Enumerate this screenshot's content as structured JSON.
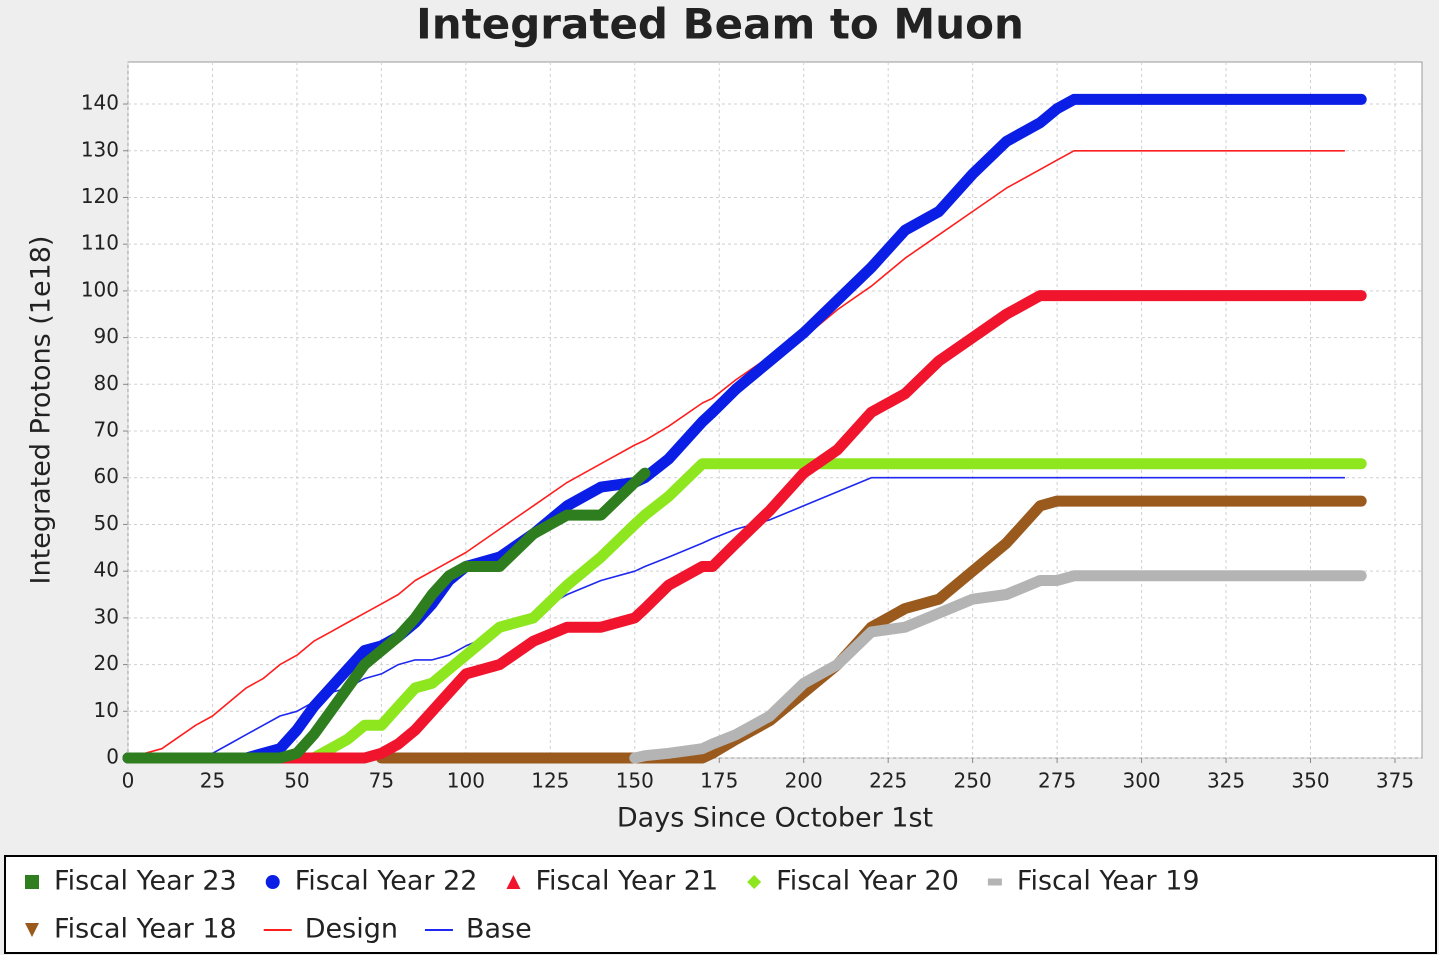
{
  "chart_data": {
    "type": "line",
    "title": "Integrated Beam to Muon",
    "x_label": "Days Since October 1st",
    "y_label": "Integrated Protons (1e18)",
    "x": [
      0,
      10,
      20,
      25,
      30,
      35,
      40,
      45,
      50,
      55,
      60,
      65,
      70,
      75,
      80,
      85,
      90,
      95,
      100,
      110,
      120,
      130,
      140,
      150,
      153,
      160,
      170,
      173,
      180,
      190,
      200,
      210,
      220,
      230,
      240,
      250,
      260,
      270,
      275,
      280,
      290,
      300,
      320,
      340,
      360,
      365
    ],
    "series": [
      {
        "name": "Fiscal Year 23",
        "color": "#2e7d1e",
        "marker": "square",
        "values": [
          0,
          0,
          0,
          0,
          0,
          0,
          0,
          0,
          1,
          5,
          10,
          15,
          20,
          23,
          26,
          30,
          35,
          39,
          41,
          41,
          48,
          52,
          52,
          59,
          61,
          null,
          null,
          null,
          null,
          null,
          null,
          null,
          null,
          null,
          null,
          null,
          null,
          null,
          null,
          null,
          null,
          null,
          null,
          null,
          null,
          null
        ]
      },
      {
        "name": "Fiscal Year 22",
        "color": "#0a1ee6",
        "marker": "circle",
        "values": [
          0,
          0,
          0,
          0,
          0,
          0,
          1,
          2,
          6,
          11,
          15,
          19,
          23,
          24,
          26,
          29,
          33,
          38,
          41,
          43,
          48,
          54,
          58,
          59,
          60,
          64,
          72,
          74,
          79,
          85,
          91,
          98,
          105,
          113,
          117,
          125,
          132,
          136,
          139,
          141,
          141,
          141,
          141,
          141,
          141,
          141
        ]
      },
      {
        "name": "Fiscal Year 21",
        "color": "#f0142d",
        "marker": "triangle",
        "values": [
          0,
          0,
          0,
          0,
          0,
          0,
          0,
          0,
          0,
          0,
          0,
          0,
          0,
          1,
          3,
          6,
          10,
          14,
          18,
          20,
          25,
          28,
          28,
          30,
          32,
          37,
          41,
          41,
          46,
          53,
          61,
          66,
          74,
          78,
          85,
          90,
          95,
          99,
          99,
          99,
          99,
          99,
          99,
          99,
          99,
          99
        ]
      },
      {
        "name": "Fiscal Year 20",
        "color": "#8ee61e",
        "marker": "diamond",
        "values": [
          0,
          0,
          0,
          0,
          0,
          0,
          0,
          0,
          0,
          0,
          2,
          4,
          7,
          7,
          11,
          15,
          16,
          19,
          22,
          28,
          30,
          37,
          43,
          50,
          52,
          56,
          63,
          63,
          63,
          63,
          63,
          63,
          63,
          63,
          63,
          63,
          63,
          63,
          63,
          63,
          63,
          63,
          63,
          63,
          63,
          63
        ]
      },
      {
        "name": "Fiscal Year 19",
        "color": "#b4b4b4",
        "marker": "dash",
        "values": [
          null,
          null,
          null,
          null,
          null,
          null,
          null,
          null,
          null,
          null,
          null,
          null,
          null,
          null,
          null,
          null,
          null,
          null,
          null,
          null,
          null,
          null,
          null,
          0,
          0.5,
          1,
          2,
          3,
          5,
          9,
          16,
          20,
          27,
          28,
          31,
          34,
          35,
          38,
          38,
          39,
          39,
          39,
          39,
          39,
          39,
          39
        ]
      },
      {
        "name": "Fiscal Year 18",
        "color": "#9a5a1e",
        "marker": "down-triangle",
        "values": [
          null,
          null,
          null,
          null,
          null,
          null,
          null,
          null,
          null,
          null,
          null,
          null,
          null,
          0,
          0,
          0,
          0,
          0,
          0,
          0,
          0,
          0,
          0,
          0,
          0,
          0,
          0,
          1,
          4,
          8,
          14,
          20,
          28,
          32,
          34,
          40,
          46,
          54,
          55,
          55,
          55,
          55,
          55,
          55,
          55,
          55
        ]
      },
      {
        "name": "Design",
        "color": "#ff1e1e",
        "values": [
          0,
          2,
          7,
          9,
          12,
          15,
          17,
          20,
          22,
          25,
          27,
          29,
          31,
          33,
          35,
          38,
          40,
          42,
          44,
          49,
          54,
          59,
          63,
          67,
          68,
          71,
          76,
          77,
          81,
          86,
          90,
          96,
          101,
          107,
          112,
          117,
          122,
          126,
          128,
          130,
          130,
          130,
          130,
          130,
          130,
          null
        ]
      },
      {
        "name": "Base",
        "color": "#1e28f0",
        "values": [
          0,
          0,
          0,
          1,
          3,
          5,
          7,
          9,
          10,
          12,
          14,
          15,
          17,
          18,
          20,
          21,
          21,
          22,
          24,
          27,
          31,
          35,
          38,
          40,
          41,
          43,
          46,
          47,
          49,
          51,
          54,
          57,
          60,
          60,
          60,
          60,
          60,
          60,
          60,
          60,
          60,
          60,
          60,
          60,
          60,
          null
        ]
      }
    ],
    "xlim": [
      0,
      383
    ],
    "ylim": [
      0,
      149
    ],
    "xticks": [
      0,
      25,
      50,
      75,
      100,
      125,
      150,
      175,
      200,
      225,
      250,
      275,
      300,
      325,
      350,
      375
    ],
    "yticks": [
      0,
      10,
      20,
      30,
      40,
      50,
      60,
      70,
      80,
      90,
      100,
      110,
      120,
      130,
      140
    ],
    "grid": true,
    "legend": "bottom"
  }
}
